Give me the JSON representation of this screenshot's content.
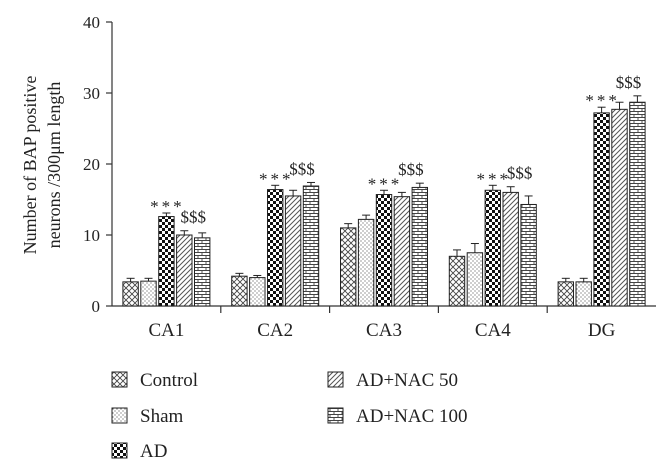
{
  "chart_data": {
    "type": "bar",
    "ylabel_line1": "Number of BAP positive",
    "ylabel_line2": "neurons /300μm length",
    "ylim": [
      0,
      40
    ],
    "yticks": [
      "0",
      "10",
      "20",
      "30",
      "40"
    ],
    "categories": [
      "CA1",
      "CA2",
      "CA3",
      "CA4",
      "DG"
    ],
    "series": [
      {
        "name": "Control",
        "pattern": "crosshatch",
        "values": [
          3.4,
          4.2,
          11.0,
          7.0,
          3.4
        ],
        "errors": [
          0.5,
          0.4,
          0.6,
          0.9,
          0.5
        ]
      },
      {
        "name": "Sham",
        "pattern": "dots",
        "values": [
          3.5,
          4.0,
          12.2,
          7.5,
          3.4
        ],
        "errors": [
          0.4,
          0.3,
          0.6,
          1.3,
          0.5
        ]
      },
      {
        "name": "AD",
        "pattern": "checker",
        "values": [
          12.6,
          16.4,
          15.7,
          16.3,
          27.2
        ],
        "errors": [
          0.5,
          0.6,
          0.6,
          0.7,
          0.8
        ]
      },
      {
        "name": "AD+NAC 50",
        "pattern": "diagonal",
        "values": [
          10.0,
          15.5,
          15.4,
          16.0,
          27.7
        ],
        "errors": [
          0.6,
          0.8,
          0.6,
          0.8,
          1.0
        ]
      },
      {
        "name": "AD+NAC 100",
        "pattern": "bricks",
        "values": [
          9.6,
          16.9,
          16.7,
          14.3,
          28.7
        ],
        "errors": [
          0.7,
          0.5,
          0.6,
          1.2,
          0.9
        ]
      }
    ],
    "annotations": {
      "ad": "***",
      "nac": "$$$"
    },
    "legend_position": "bottom"
  }
}
